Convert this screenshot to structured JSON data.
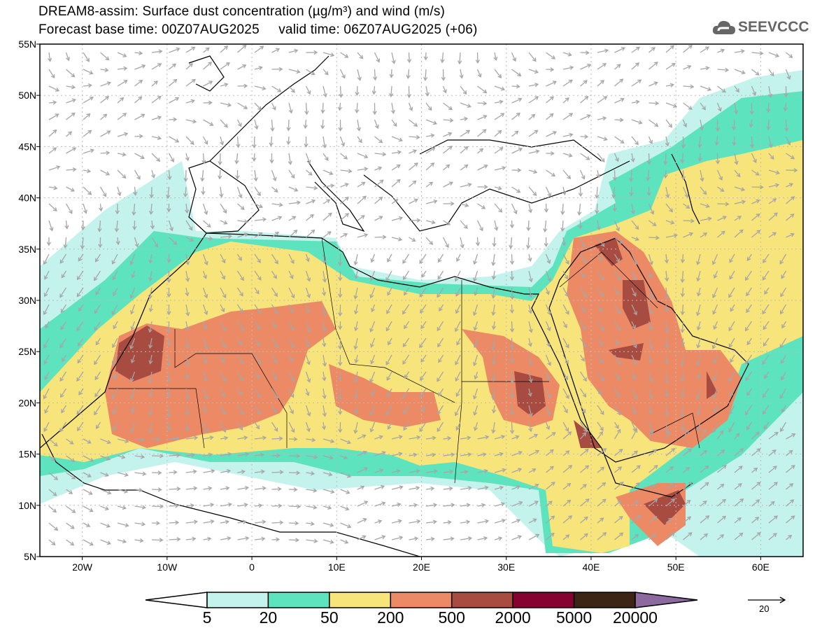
{
  "title": {
    "line1": "DREAM8-assim: Surface dust concentration (µg/m³) and wind (m/s)",
    "line2": "Forecast base time: 00Z07AUG2025     valid time: 06Z07AUG2025 (+06)"
  },
  "logo": {
    "text": "SEEVCCC",
    "icon": "cloud-icon"
  },
  "axes": {
    "lat_labels": [
      "5N",
      "10N",
      "15N",
      "20N",
      "25N",
      "30N",
      "35N",
      "40N",
      "45N",
      "50N",
      "55N"
    ],
    "lon_labels": [
      "20W",
      "10W",
      "0",
      "10E",
      "20E",
      "30E",
      "40E",
      "50E",
      "60E"
    ],
    "lon_range": [
      -25,
      65
    ],
    "lat_range": [
      5,
      55
    ]
  },
  "colorbar": {
    "levels": [
      "5",
      "20",
      "50",
      "200",
      "500",
      "2000",
      "5000",
      "20000"
    ],
    "colors": [
      "#c4f2ec",
      "#5de4bf",
      "#f7e47a",
      "#ec8a66",
      "#a84b40",
      "#860230",
      "#3c2514"
    ],
    "over_color": "#8c6aa0"
  },
  "wind_reference": {
    "label": "20"
  },
  "colors": {
    "arrow": "#a6a6a6",
    "coast": "#000000"
  }
}
